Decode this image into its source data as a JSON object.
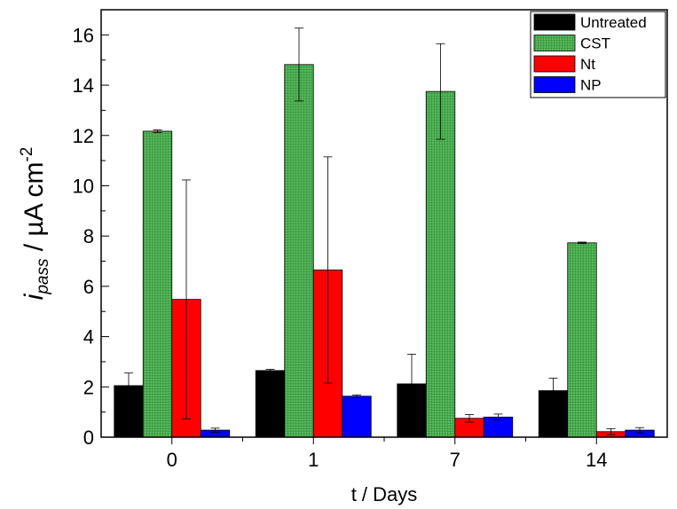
{
  "chart_data": {
    "type": "bar",
    "title": "",
    "xlabel": "t / Days",
    "ylabel_main": "i",
    "ylabel_sub": "pass",
    "ylabel_rest": " / µA cm",
    "ylabel_sup": "-2",
    "categories": [
      "0",
      "1",
      "7",
      "14"
    ],
    "ylim": [
      0,
      17
    ],
    "yticks": [
      0,
      2,
      4,
      6,
      8,
      10,
      12,
      14,
      16
    ],
    "grid": false,
    "legend_position": "top-right",
    "series": [
      {
        "name": "Untreated",
        "color": "#000000",
        "pattern": "solid",
        "values": [
          2.05,
          2.65,
          2.12,
          1.85
        ],
        "errors": [
          0.5,
          0.05,
          1.18,
          0.5
        ]
      },
      {
        "name": "CST",
        "color": "#4caf50",
        "pattern": "grid",
        "values": [
          12.17,
          14.82,
          13.75,
          7.73
        ],
        "errors": [
          0.05,
          1.45,
          1.9,
          0.03
        ]
      },
      {
        "name": "Nt",
        "color": "#ff0000",
        "pattern": "solid",
        "values": [
          5.48,
          6.65,
          0.75,
          0.22
        ],
        "errors": [
          4.75,
          4.5,
          0.15,
          0.12
        ]
      },
      {
        "name": "NP",
        "color": "#0000ff",
        "pattern": "solid",
        "values": [
          0.28,
          1.63,
          0.8,
          0.28
        ],
        "errors": [
          0.08,
          0.05,
          0.12,
          0.1
        ]
      }
    ]
  }
}
